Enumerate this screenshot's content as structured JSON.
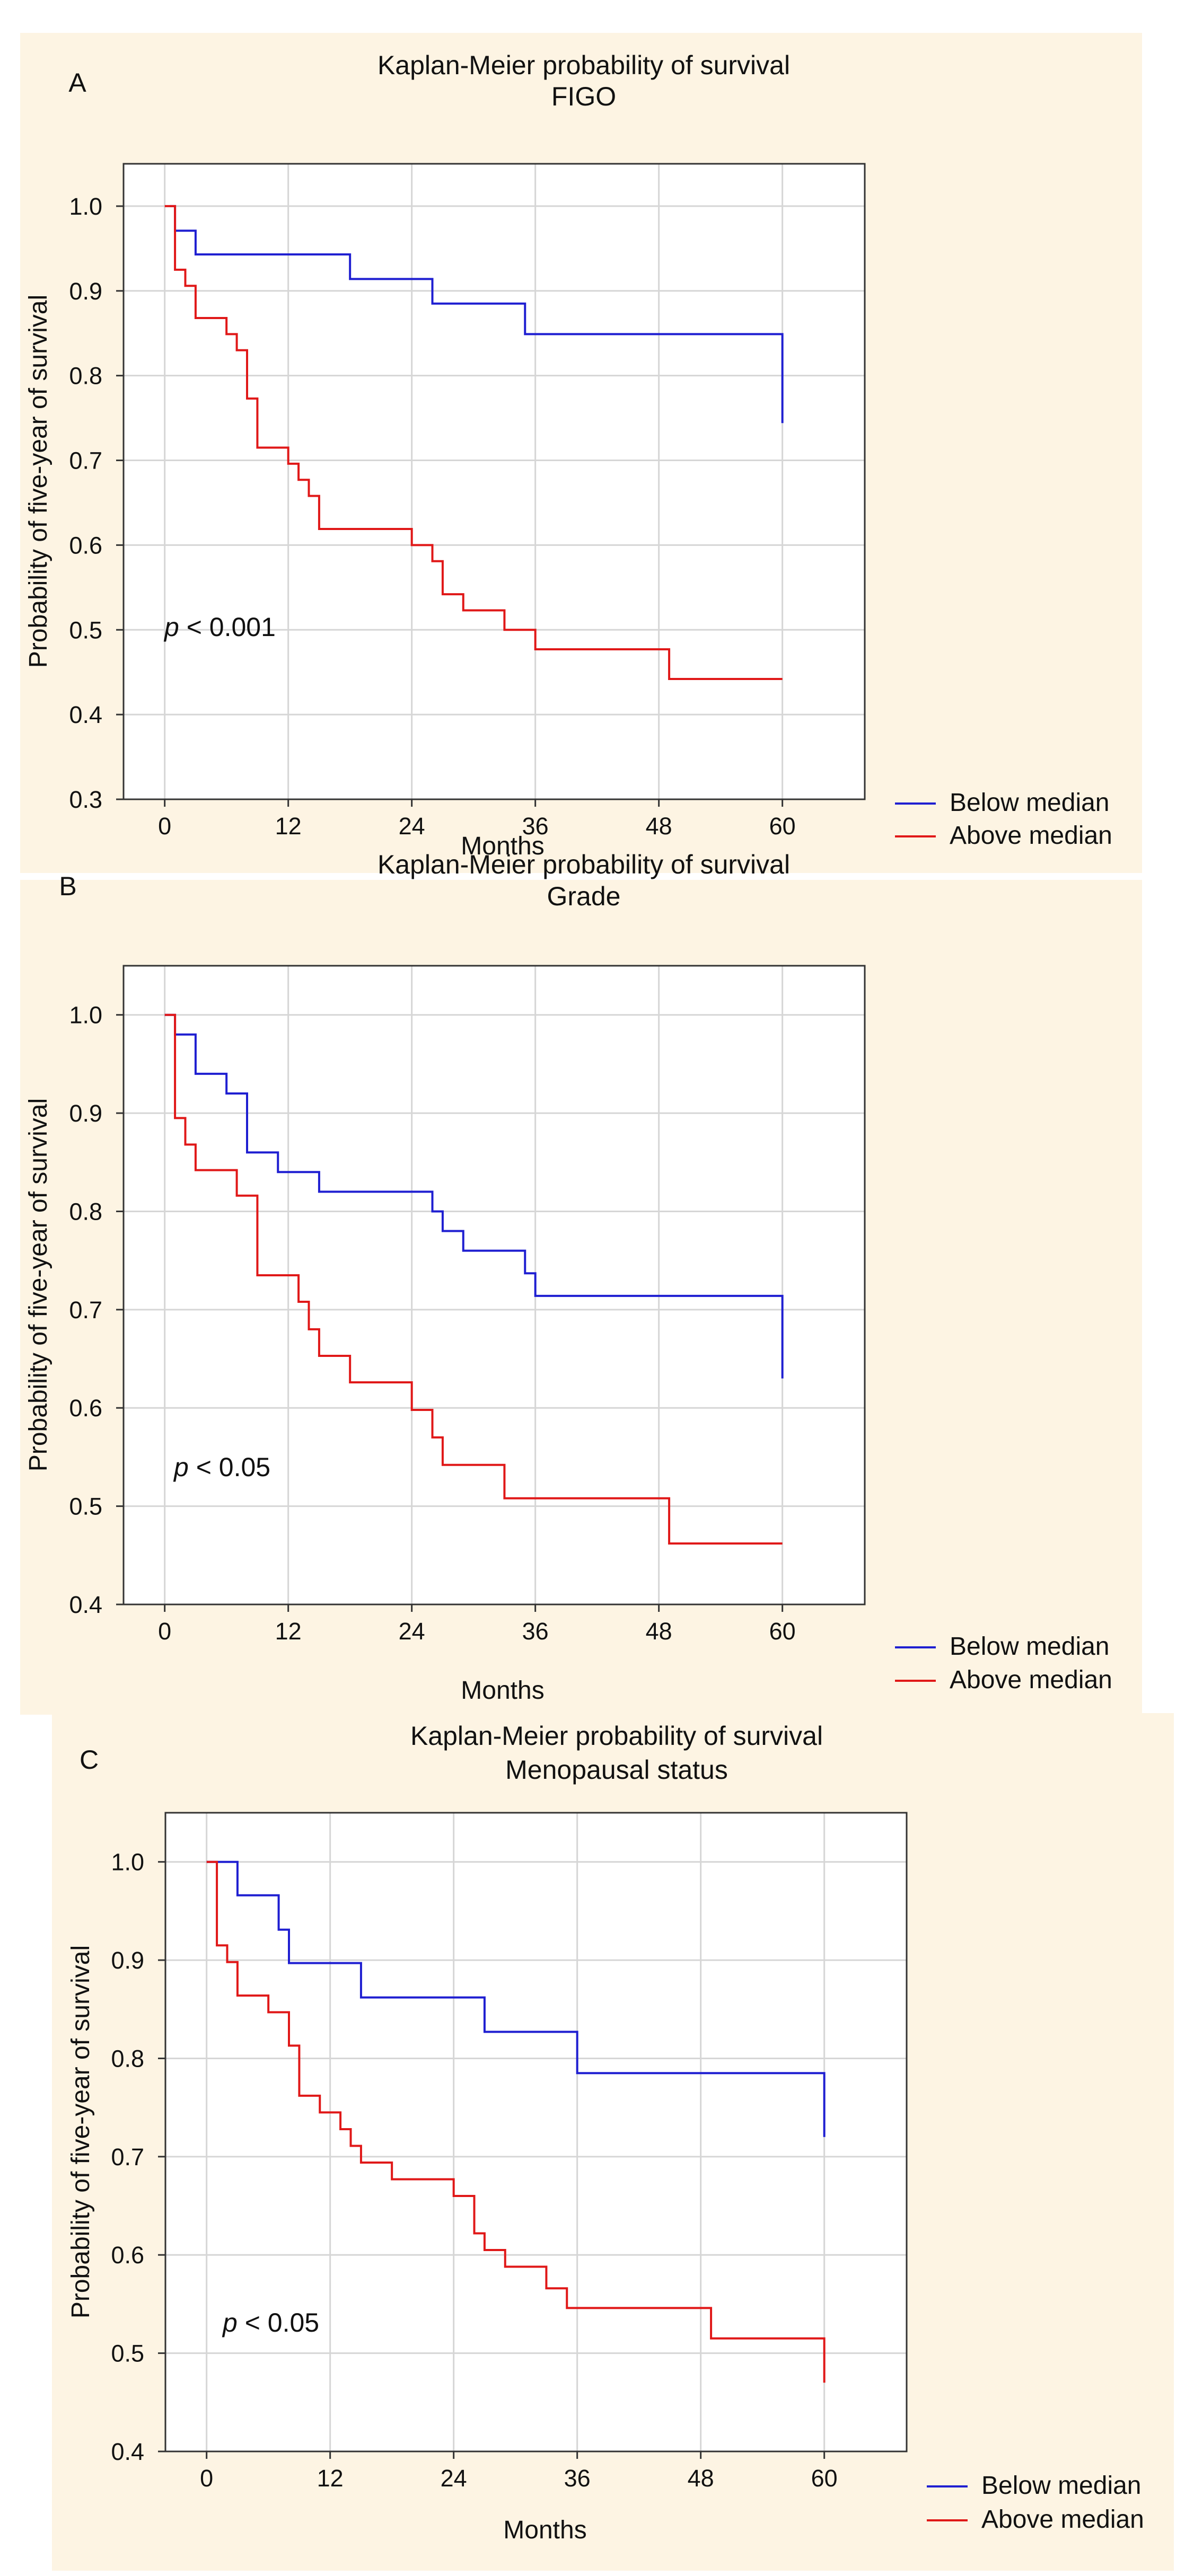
{
  "chart_data": [
    {
      "type": "line",
      "panel_letter": "A",
      "title": "Kaplan-Meier probability of survival",
      "subtitle": "FIGO",
      "xlabel": "Months",
      "ylabel": "Probability of five-year of survival",
      "xlim": [
        -4,
        68
      ],
      "ylim": [
        0.3,
        1.05
      ],
      "xticks": [
        "0",
        "12",
        "24",
        "36",
        "48",
        "60"
      ],
      "yticks": [
        "0.3",
        "0.4",
        "0.5",
        "0.6",
        "0.7",
        "0.8",
        "0.9",
        "1.0"
      ],
      "p_prefix": "p",
      "p_value": "< 0.001",
      "legend_position": "bottom-right",
      "series": [
        {
          "name": "Below median",
          "color": "#1f1fd1",
          "x": [
            0.5,
            1,
            3,
            18,
            26,
            35,
            60,
            60
          ],
          "y": [
            1.0,
            0.971,
            0.943,
            0.914,
            0.885,
            0.849,
            0.849,
            0.744
          ]
        },
        {
          "name": "Above median",
          "color": "#e01818",
          "x": [
            0,
            1,
            2,
            3,
            6,
            7,
            8,
            9,
            12,
            13,
            14,
            15,
            24,
            26,
            27,
            29,
            33,
            36,
            49,
            60
          ],
          "y": [
            1.0,
            0.925,
            0.906,
            0.868,
            0.849,
            0.83,
            0.773,
            0.715,
            0.696,
            0.677,
            0.658,
            0.619,
            0.6,
            0.581,
            0.542,
            0.523,
            0.5,
            0.477,
            0.442,
            0.442
          ]
        }
      ]
    },
    {
      "type": "line",
      "panel_letter": "B",
      "title": "Kaplan-Meier probability of survival",
      "subtitle": "Grade",
      "xlabel": "Months",
      "ylabel": "Probability of five-year of survival",
      "xlim": [
        -4,
        68
      ],
      "ylim": [
        0.4,
        1.05
      ],
      "xticks": [
        "0",
        "12",
        "24",
        "36",
        "48",
        "60"
      ],
      "yticks": [
        "0.4",
        "0.5",
        "0.6",
        "0.7",
        "0.8",
        "0.9",
        "1.0"
      ],
      "p_prefix": "p",
      "p_value": "< 0.05",
      "legend_position": "bottom-right",
      "series": [
        {
          "name": "Below median",
          "color": "#1f1fd1",
          "x": [
            0,
            1,
            3,
            6,
            8,
            11,
            15,
            26,
            27,
            29,
            35,
            36,
            60,
            60
          ],
          "y": [
            1.0,
            0.98,
            0.94,
            0.92,
            0.86,
            0.84,
            0.82,
            0.8,
            0.78,
            0.76,
            0.737,
            0.714,
            0.714,
            0.63
          ]
        },
        {
          "name": "Above median",
          "color": "#e01818",
          "x": [
            0,
            1,
            2,
            3,
            7,
            9,
            13,
            14,
            15,
            18,
            24,
            26,
            27,
            33,
            49,
            60
          ],
          "y": [
            1.0,
            0.895,
            0.868,
            0.842,
            0.816,
            0.735,
            0.708,
            0.68,
            0.653,
            0.626,
            0.598,
            0.57,
            0.542,
            0.508,
            0.462,
            0.462
          ]
        }
      ]
    },
    {
      "type": "line",
      "panel_letter": "C",
      "title": "Kaplan-Meier probability of survival",
      "subtitle": "Menopausal status",
      "xlabel": "Months",
      "ylabel": "Probability of five-year of survival",
      "xlim": [
        -4,
        68
      ],
      "ylim": [
        0.4,
        1.05
      ],
      "xticks": [
        "0",
        "12",
        "24",
        "36",
        "48",
        "60"
      ],
      "yticks": [
        "0.4",
        "0.5",
        "0.6",
        "0.7",
        "0.8",
        "0.9",
        "1.0"
      ],
      "p_prefix": "p",
      "p_value": "< 0.05",
      "legend_position": "bottom-right",
      "series": [
        {
          "name": "Below median",
          "color": "#1f1fd1",
          "x": [
            0,
            3,
            7,
            8,
            15,
            27,
            36,
            60,
            60
          ],
          "y": [
            1.0,
            0.966,
            0.931,
            0.897,
            0.862,
            0.827,
            0.785,
            0.785,
            0.72
          ]
        },
        {
          "name": "Above median",
          "color": "#e01818",
          "x": [
            0,
            1,
            2,
            3,
            6,
            8,
            9,
            11,
            13,
            14,
            15,
            18,
            24,
            26,
            27,
            29,
            33,
            35,
            49,
            60,
            60
          ],
          "y": [
            1.0,
            0.915,
            0.898,
            0.864,
            0.847,
            0.813,
            0.762,
            0.745,
            0.728,
            0.711,
            0.694,
            0.677,
            0.66,
            0.622,
            0.605,
            0.588,
            0.566,
            0.546,
            0.515,
            0.515,
            0.47
          ]
        }
      ]
    }
  ]
}
